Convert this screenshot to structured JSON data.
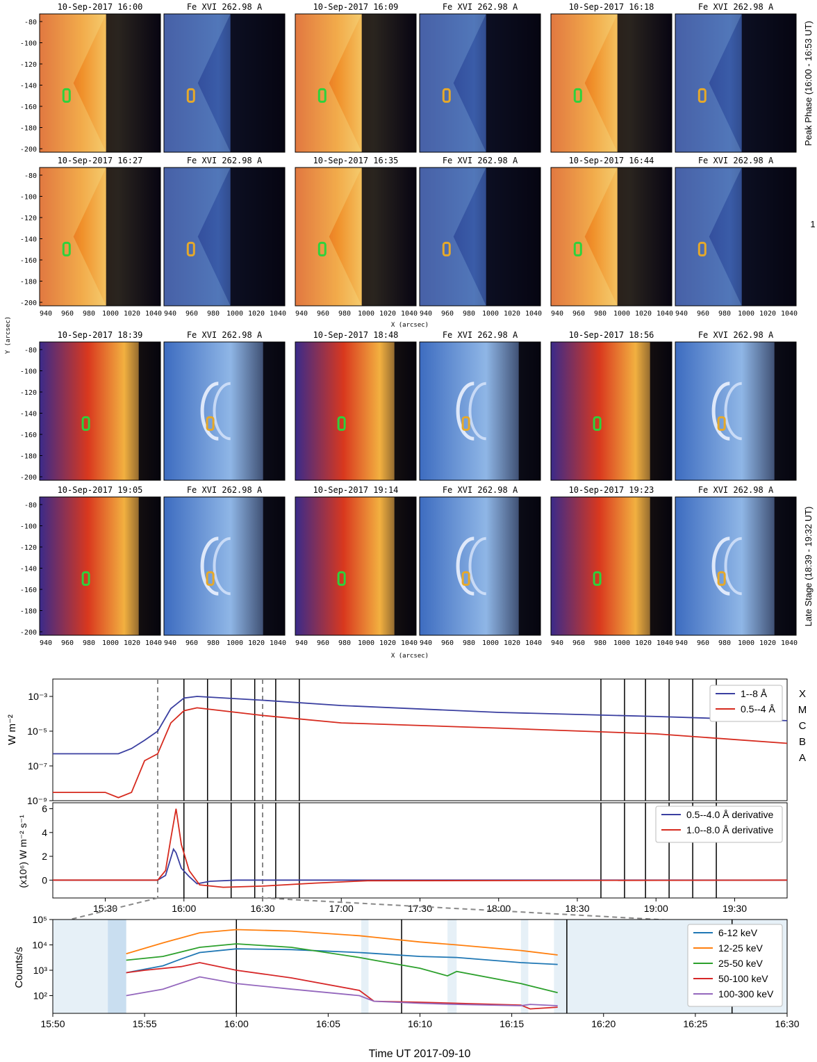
{
  "panels": {
    "titles": [
      "10-Sep-2017 16:00",
      "Fe XVI 262.98 A",
      "10-Sep-2017 16:09",
      "Fe XVI 262.98 A",
      "10-Sep-2017 16:18",
      "Fe XVI 262.98 A",
      "10-Sep-2017 16:27",
      "Fe XVI 262.98 A",
      "10-Sep-2017 16:35",
      "Fe XVI 262.98 A",
      "10-Sep-2017 16:44",
      "Fe XVI 262.98 A",
      "10-Sep-2017 18:39",
      "Fe XVI 262.98 A",
      "10-Sep-2017 18:48",
      "Fe XVI 262.98 A",
      "10-Sep-2017 18:56",
      "Fe XVI 262.98 A",
      "10-Sep-2017 19:05",
      "Fe XVI 262.98 A",
      "10-Sep-2017 19:14",
      "Fe XVI 262.98 A",
      "10-Sep-2017 19:23",
      "Fe XVI 262.98 A"
    ],
    "y_ticks": [
      "-80",
      "-100",
      "-120",
      "-140",
      "-160",
      "-180",
      "-200"
    ],
    "x_ticks": [
      "940",
      "960",
      "980",
      "1000",
      "1020",
      "1040"
    ],
    "x_label": "X (arcsec)",
    "y_label": "Y (arcsec)",
    "peak_label": "Peak Phase (16:00 - 16:53 UT)",
    "late_label": "Late Stage (18:39 - 19:32 UT)",
    "stray": "1"
  },
  "chart_data": [
    {
      "type": "line",
      "ylabel": "W m⁻²",
      "yscale": "log",
      "ylim": [
        1e-09,
        0.01
      ],
      "y_ticks": [
        "10⁻³",
        "10⁻⁵",
        "10⁻⁷",
        "10⁻⁹"
      ],
      "flare_classes": [
        "X",
        "M",
        "C",
        "B",
        "A"
      ],
      "series": [
        {
          "name": "1--8 Å",
          "color": "#3a3fa0",
          "x": [
            "15:10",
            "15:35",
            "15:40",
            "15:45",
            "15:50",
            "15:55",
            "16:00",
            "16:05",
            "16:30",
            "17:00",
            "18:00",
            "19:00",
            "19:50"
          ],
          "values": [
            5e-07,
            5e-07,
            1e-06,
            3e-06,
            1e-05,
            0.0002,
            0.0008,
            0.001,
            0.0006,
            0.0003,
            0.00012,
            7e-05,
            4e-05
          ]
        },
        {
          "name": "0.5--4 Å",
          "color": "#d62a1e",
          "x": [
            "15:10",
            "15:30",
            "15:35",
            "15:40",
            "15:45",
            "15:50",
            "15:55",
            "16:00",
            "16:05",
            "16:30",
            "17:00",
            "18:00",
            "19:00",
            "19:50"
          ],
          "values": [
            3e-09,
            3e-09,
            1.5e-09,
            3e-09,
            2e-07,
            5e-07,
            3e-05,
            0.00015,
            0.00022,
            8e-05,
            3e-05,
            1.5e-05,
            7e-06,
            2e-06
          ]
        }
      ]
    },
    {
      "type": "line",
      "ylabel": "(x10⁶) W m⁻² s⁻¹",
      "ylim": [
        -1.5,
        6.5
      ],
      "y_ticks": [
        "6",
        "4",
        "2",
        "0"
      ],
      "x_ticks": [
        "15:30",
        "16:00",
        "16:30",
        "17:00",
        "17:30",
        "18:00",
        "18:30",
        "19:00",
        "19:30"
      ],
      "series": [
        {
          "name": "0.5--4.0 Å derivative",
          "color": "#3a3fa0",
          "x": [
            "15:10",
            "15:50",
            "15:53",
            "15:56",
            "15:57",
            "15:59",
            "16:02",
            "16:05",
            "16:10",
            "16:20",
            "16:40",
            "17:00",
            "19:50"
          ],
          "values": [
            0,
            0,
            0.4,
            2.6,
            2.3,
            1.0,
            0.3,
            -0.3,
            -0.1,
            0,
            0,
            0,
            0
          ]
        },
        {
          "name": "1.0--8.0 Å derivative",
          "color": "#d62a1e",
          "x": [
            "15:10",
            "15:50",
            "15:53",
            "15:55",
            "15:57",
            "15:59",
            "16:02",
            "16:06",
            "16:15",
            "16:30",
            "16:50",
            "17:10",
            "19:50"
          ],
          "values": [
            0,
            0,
            0.8,
            3.5,
            6.0,
            3.0,
            0.8,
            -0.4,
            -0.6,
            -0.5,
            -0.25,
            -0.05,
            0
          ]
        }
      ]
    },
    {
      "type": "line",
      "yscale": "log",
      "ylabel": "Counts/s",
      "xlabel": "Time UT 2017-09-10",
      "ylim": [
        20,
        100000
      ],
      "y_ticks": [
        "10⁵",
        "10⁴",
        "10³",
        "10²"
      ],
      "x_ticks": [
        "15:50",
        "15:55",
        "16:00",
        "16:05",
        "16:10",
        "16:15",
        "16:20",
        "16:25",
        "16:30"
      ],
      "series": [
        {
          "name": "6-12 keV",
          "color": "#1f77b4",
          "x": [
            "15:54.0",
            "15:56",
            "15:57",
            "15:58",
            "16:00",
            "16:03",
            "16:06.7",
            "16:07.5",
            "16:10",
            "16:12",
            "16:15.5",
            "16:17.5"
          ],
          "values": [
            800,
            1500,
            2800,
            5000,
            7000,
            6500,
            5000,
            4600,
            3500,
            3200,
            2000,
            1700
          ]
        },
        {
          "name": "12-25 keV",
          "color": "#ff7f0e",
          "x": [
            "15:54.0",
            "15:56",
            "15:58",
            "16:00",
            "16:03",
            "16:06.7",
            "16:07.5",
            "16:10",
            "16:12",
            "16:15.5",
            "16:17.5"
          ],
          "values": [
            4500,
            12000,
            30000,
            40000,
            35000,
            23000,
            20000,
            13000,
            10000,
            6000,
            4000
          ]
        },
        {
          "name": "25-50 keV",
          "color": "#2ca02c",
          "x": [
            "15:54.0",
            "15:56",
            "15:58",
            "16:00",
            "16:03",
            "16:06.7",
            "16:07.5",
            "16:10",
            "16:11.5",
            "16:12",
            "16:15.5",
            "16:17.5"
          ],
          "values": [
            2500,
            3500,
            8000,
            11000,
            8000,
            3200,
            2500,
            1200,
            600,
            900,
            300,
            130
          ]
        },
        {
          "name": "50-100 keV",
          "color": "#d62728",
          "x": [
            "15:54.0",
            "15:55",
            "15:57",
            "15:58",
            "16:00",
            "16:03",
            "16:06.7",
            "16:07.5",
            "16:10",
            "16:12",
            "16:15.5",
            "16:16",
            "16:17.5"
          ],
          "values": [
            800,
            1000,
            1400,
            2000,
            1000,
            500,
            160,
            60,
            55,
            50,
            42,
            30,
            35
          ]
        },
        {
          "name": "100-300 keV",
          "color": "#9467bd",
          "x": [
            "15:54.0",
            "15:56",
            "15:58",
            "16:00",
            "16:03",
            "16:06.7",
            "16:07.5",
            "16:10",
            "16:12",
            "16:15.5",
            "16:16",
            "16:17.5"
          ],
          "values": [
            100,
            180,
            550,
            300,
            180,
            100,
            60,
            50,
            45,
            40,
            45,
            40
          ]
        }
      ],
      "attenuator_shaded": true
    }
  ],
  "colors": {
    "blue": "#3a3fa0",
    "red": "#d62a1e",
    "dash": "#888888",
    "shade": "#e6f0f7",
    "shade_dark": "#c9def0"
  },
  "legend_top": [
    "1--8 Å",
    "0.5--4 Å"
  ],
  "legend_mid": [
    "0.5--4.0 Å derivative",
    "1.0--8.0 Å derivative"
  ],
  "legend_bot": [
    "6-12 keV",
    "12-25 keV",
    "25-50 keV",
    "50-100 keV",
    "100-300 keV"
  ]
}
